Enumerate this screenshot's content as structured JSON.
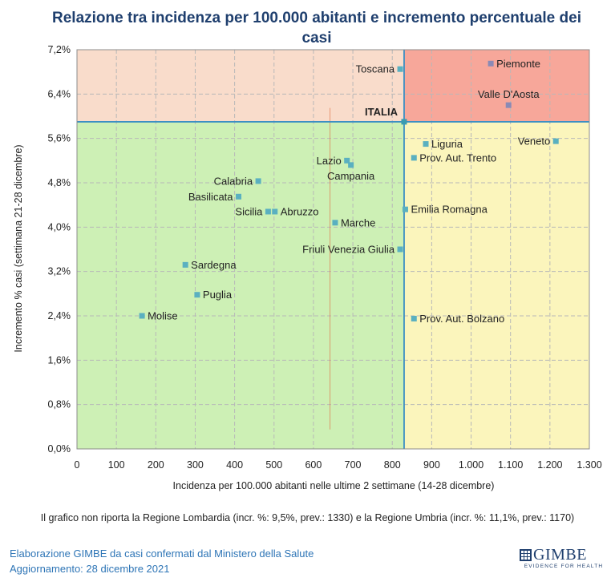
{
  "chart_data": {
    "type": "scatter",
    "title": "Relazione tra incidenza per 100.000 abitanti e incremento percentuale dei casi",
    "xlabel": "Incidenza per 100.000 abitanti nelle ultime 2 settimane (14-28 dicembre)",
    "ylabel": "Incremento % casi (settimana 21-28 dicembre)",
    "xlim": [
      0,
      1300
    ],
    "ylim": [
      0,
      7.2
    ],
    "x_ticks": [
      "0",
      "100",
      "200",
      "300",
      "400",
      "500",
      "600",
      "700",
      "800",
      "900",
      "1.000",
      "1.100",
      "1.200",
      "1.300"
    ],
    "y_ticks": [
      "0,0%",
      "0,8%",
      "1,6%",
      "2,4%",
      "3,2%",
      "4,0%",
      "4,8%",
      "5,6%",
      "6,4%",
      "7,2%"
    ],
    "reference": {
      "label": "ITALIA",
      "x": 830,
      "y": 5.9
    },
    "quadrant_colors": {
      "top_left": "#f9dccb",
      "top_right": "#f7a79a",
      "bottom_left": "#cdf0b5",
      "bottom_right": "#fbf5bc"
    },
    "marker_colors": {
      "default": "#5ab0c0",
      "top_right": "#8a8ab5",
      "italia": "#3a9bb0",
      "trend": "#e07a50"
    },
    "points": [
      {
        "label": "Toscana",
        "x": 820,
        "y": 6.85,
        "label_pos": "left"
      },
      {
        "label": "Piemonte",
        "x": 1050,
        "y": 6.95,
        "label_pos": "right"
      },
      {
        "label": "Valle D'Aosta",
        "x": 1095,
        "y": 6.2,
        "label_pos": "above"
      },
      {
        "label": "Veneto",
        "x": 1215,
        "y": 5.55,
        "label_pos": "left"
      },
      {
        "label": "Liguria",
        "x": 885,
        "y": 5.5,
        "label_pos": "right"
      },
      {
        "label": "Prov. Aut. Trento",
        "x": 855,
        "y": 5.25,
        "label_pos": "right"
      },
      {
        "label": "Lazio",
        "x": 685,
        "y": 5.2,
        "label_pos": "left"
      },
      {
        "label": "Campania",
        "x": 695,
        "y": 5.12,
        "label_pos": "below"
      },
      {
        "label": "Calabria",
        "x": 460,
        "y": 4.83,
        "label_pos": "left"
      },
      {
        "label": "Basilicata",
        "x": 410,
        "y": 4.55,
        "label_pos": "left"
      },
      {
        "label": "Sicilia",
        "x": 485,
        "y": 4.28,
        "label_pos": "left"
      },
      {
        "label": "Abruzzo",
        "x": 502,
        "y": 4.28,
        "label_pos": "right"
      },
      {
        "label": "Marche",
        "x": 655,
        "y": 4.08,
        "label_pos": "right"
      },
      {
        "label": "Emilia Romagna",
        "x": 833,
        "y": 4.32,
        "label_pos": "right"
      },
      {
        "label": "Friuli Venezia Giulia",
        "x": 820,
        "y": 3.6,
        "label_pos": "left"
      },
      {
        "label": "Sardegna",
        "x": 275,
        "y": 3.32,
        "label_pos": "right"
      },
      {
        "label": "Puglia",
        "x": 305,
        "y": 2.78,
        "label_pos": "right"
      },
      {
        "label": "Molise",
        "x": 165,
        "y": 2.4,
        "label_pos": "right"
      },
      {
        "label": "Prov. Aut. Bolzano",
        "x": 855,
        "y": 2.35,
        "label_pos": "right"
      }
    ]
  },
  "footnote": "Il grafico non riporta la Regione Lombardia (incr. %: 9,5%, prev.: 1330) e la Regione Umbria (incr. %: 11,1%, prev.: 1170)",
  "credit": {
    "line1": "Elaborazione GIMBE da casi confermati dal Ministero della Salute",
    "line2": "Aggiornamento: 28 dicembre 2021"
  },
  "logo": {
    "name": "GIMBE",
    "tagline": "EVIDENCE FOR HEALTH",
    "icon": "grid-logo-icon"
  }
}
